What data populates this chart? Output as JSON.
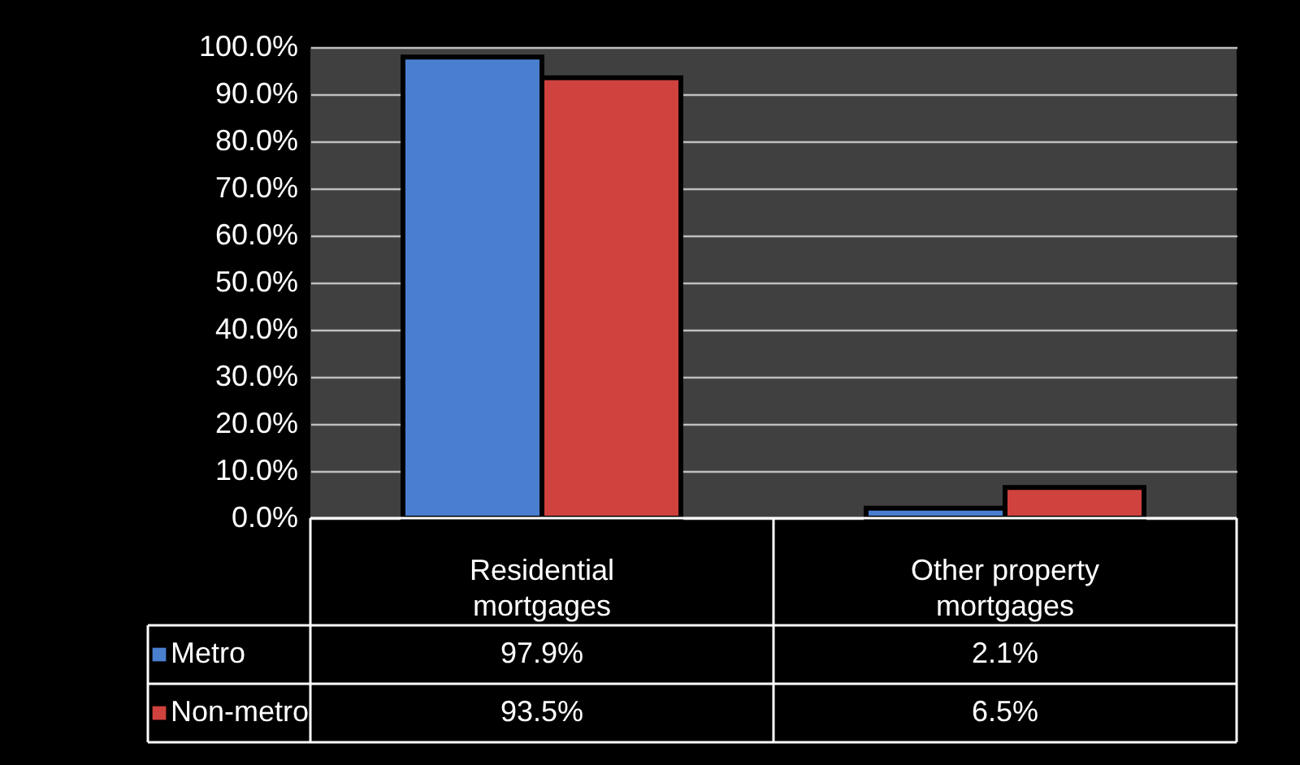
{
  "chart_data": {
    "type": "bar",
    "categories": [
      "Residential mortgages",
      "Other property mortgages"
    ],
    "series": [
      {
        "name": "Metro",
        "color": "#4a7fd0",
        "values": [
          97.9,
          2.1
        ],
        "value_labels": [
          "97.9%",
          "2.1%"
        ]
      },
      {
        "name": "Non-metro",
        "color": "#d0423e",
        "values": [
          93.5,
          6.5
        ],
        "value_labels": [
          "93.5%",
          "6.5%"
        ]
      }
    ],
    "ylim": [
      0,
      100
    ],
    "yticks": [
      {
        "value": 0,
        "label": "0.0%"
      },
      {
        "value": 10,
        "label": "10.0%"
      },
      {
        "value": 20,
        "label": "20.0%"
      },
      {
        "value": 30,
        "label": "30.0%"
      },
      {
        "value": 40,
        "label": "40.0%"
      },
      {
        "value": 50,
        "label": "50.0%"
      },
      {
        "value": 60,
        "label": "60.0%"
      },
      {
        "value": 70,
        "label": "70.0%"
      },
      {
        "value": 80,
        "label": "80.0%"
      },
      {
        "value": 90,
        "label": "90.0%"
      },
      {
        "value": 100,
        "label": "100.0%"
      }
    ],
    "grid": "y",
    "legend": "bottom"
  }
}
